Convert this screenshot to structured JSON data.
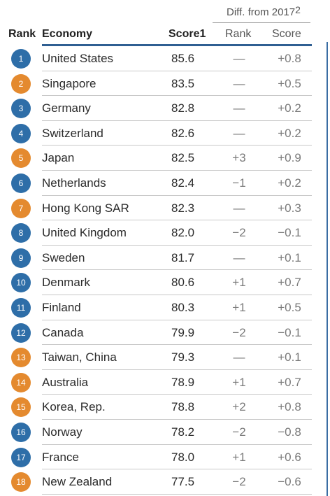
{
  "header": {
    "diff_from": "Diff. from 2017",
    "diff_note": "2",
    "rank": "Rank",
    "economy": "Economy",
    "score1": "Score1",
    "diff_rank": "Rank",
    "diff_score": "Score"
  },
  "colors": {
    "blue": "#2e6ea8",
    "orange": "#e48a2f",
    "rule": "#2f5f92"
  },
  "rows": [
    {
      "rank": "1",
      "color": "blue",
      "economy": "United States",
      "score": "85.6",
      "rank_change": "—",
      "score_change": "+0.8"
    },
    {
      "rank": "2",
      "color": "orange",
      "economy": "Singapore",
      "score": "83.5",
      "rank_change": "—",
      "score_change": "+0.5"
    },
    {
      "rank": "3",
      "color": "blue",
      "economy": "Germany",
      "score": "82.8",
      "rank_change": "—",
      "score_change": "+0.2"
    },
    {
      "rank": "4",
      "color": "blue",
      "economy": "Switzerland",
      "score": "82.6",
      "rank_change": "—",
      "score_change": "+0.2"
    },
    {
      "rank": "5",
      "color": "orange",
      "economy": "Japan",
      "score": "82.5",
      "rank_change": "+3",
      "score_change": "+0.9"
    },
    {
      "rank": "6",
      "color": "blue",
      "economy": "Netherlands",
      "score": "82.4",
      "rank_change": "−1",
      "score_change": "+0.2"
    },
    {
      "rank": "7",
      "color": "orange",
      "economy": "Hong Kong SAR",
      "score": "82.3",
      "rank_change": "—",
      "score_change": "+0.3"
    },
    {
      "rank": "8",
      "color": "blue",
      "economy": "United Kingdom",
      "score": "82.0",
      "rank_change": "−2",
      "score_change": "−0.1"
    },
    {
      "rank": "9",
      "color": "blue",
      "economy": "Sweden",
      "score": "81.7",
      "rank_change": "—",
      "score_change": "+0.1"
    },
    {
      "rank": "10",
      "color": "blue",
      "economy": "Denmark",
      "score": "80.6",
      "rank_change": "+1",
      "score_change": "+0.7"
    },
    {
      "rank": "11",
      "color": "blue",
      "economy": "Finland",
      "score": "80.3",
      "rank_change": "+1",
      "score_change": "+0.5"
    },
    {
      "rank": "12",
      "color": "blue",
      "economy": "Canada",
      "score": "79.9",
      "rank_change": "−2",
      "score_change": "−0.1"
    },
    {
      "rank": "13",
      "color": "orange",
      "economy": "Taiwan, China",
      "score": "79.3",
      "rank_change": "—",
      "score_change": "+0.1"
    },
    {
      "rank": "14",
      "color": "orange",
      "economy": "Australia",
      "score": "78.9",
      "rank_change": "+1",
      "score_change": "+0.7"
    },
    {
      "rank": "15",
      "color": "orange",
      "economy": "Korea, Rep.",
      "score": "78.8",
      "rank_change": "+2",
      "score_change": "+0.8"
    },
    {
      "rank": "16",
      "color": "blue",
      "economy": "Norway",
      "score": "78.2",
      "rank_change": "−2",
      "score_change": "−0.8"
    },
    {
      "rank": "17",
      "color": "blue",
      "economy": "France",
      "score": "78.0",
      "rank_change": "+1",
      "score_change": "+0.6"
    },
    {
      "rank": "18",
      "color": "orange",
      "economy": "New Zealand",
      "score": "77.5",
      "rank_change": "−2",
      "score_change": "−0.6"
    }
  ]
}
